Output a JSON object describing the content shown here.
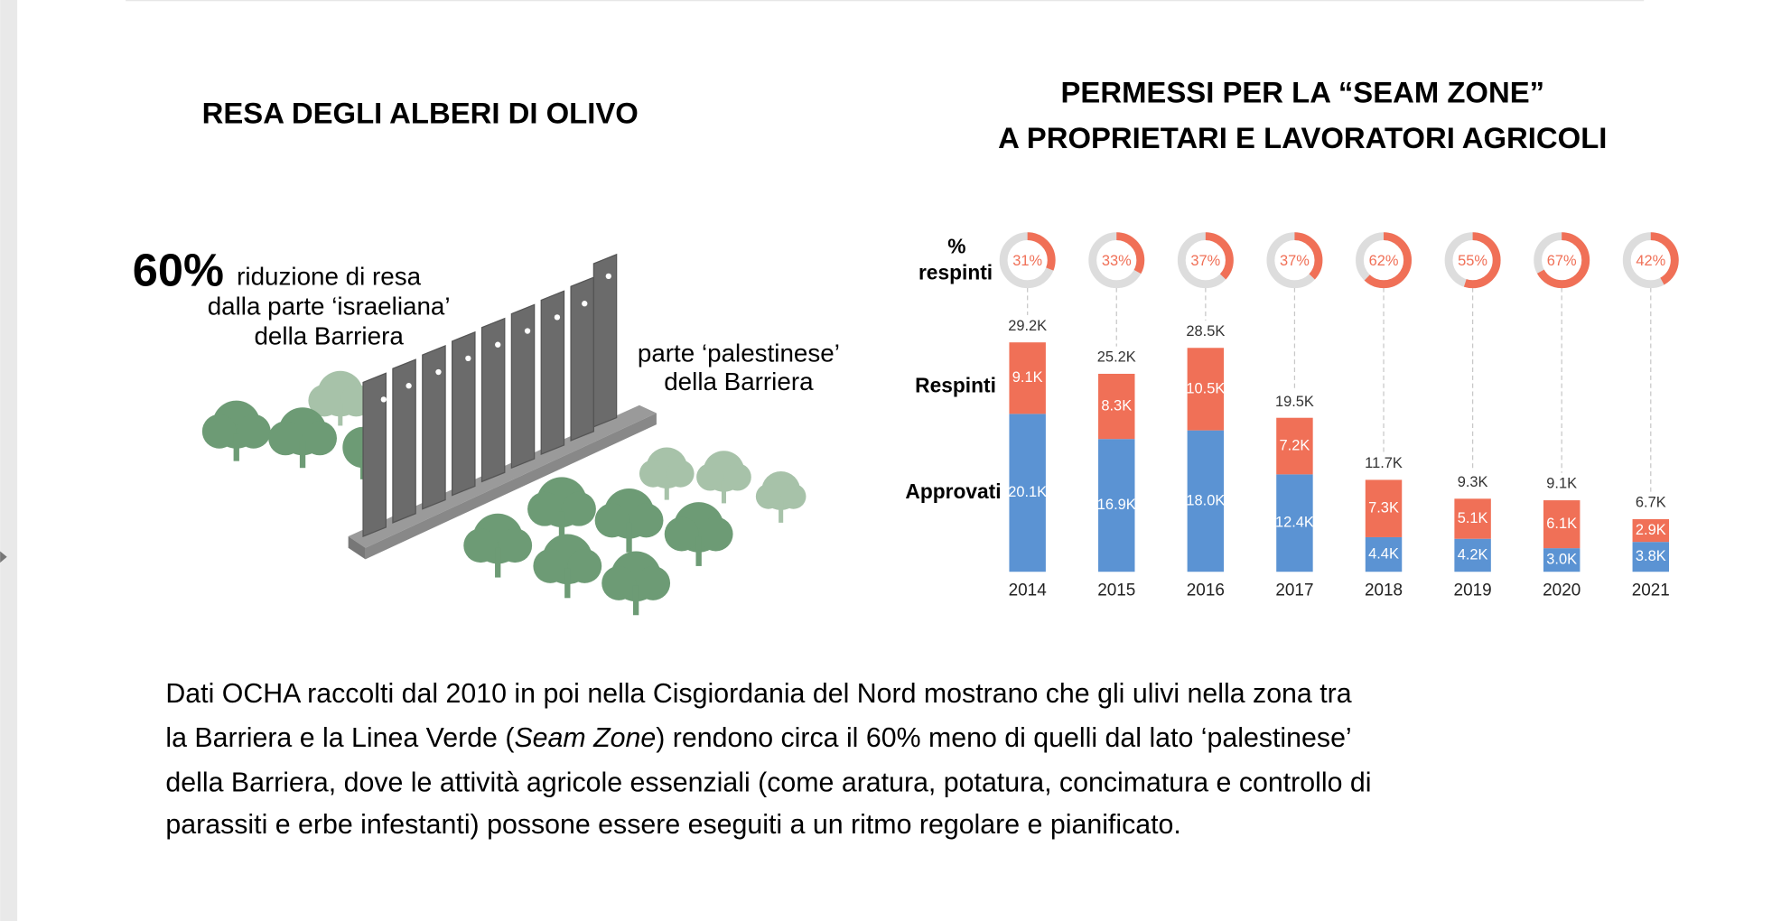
{
  "left": {
    "title": "RESA DEGLI ALBERI DI OLIVO",
    "highlight": "60%",
    "israeli_side": [
      "riduzione di resa",
      "dalla parte ‘israeliana’",
      "della Barriera"
    ],
    "palestinian_side": [
      "parte ‘palestinese’",
      "della Barriera"
    ]
  },
  "chart_data": {
    "type": "bar",
    "title": [
      "PERMESSI PER LA “SEAM ZONE”",
      "A PROPRIETARI E LAVORATORI AGRICOLI"
    ],
    "categories": [
      "2014",
      "2015",
      "2016",
      "2017",
      "2018",
      "2019",
      "2020",
      "2021"
    ],
    "series": [
      {
        "name": "Approvati",
        "color": "#5b93d3",
        "values": [
          20.1,
          16.9,
          18.0,
          12.4,
          4.4,
          4.2,
          3.0,
          3.8
        ],
        "value_labels": [
          "20.1K",
          "16.9K",
          "18.0K",
          "12.4K",
          "4.4K",
          "4.2K",
          "3.0K",
          "3.8K"
        ]
      },
      {
        "name": "Respinti",
        "color": "#f07057",
        "values": [
          9.1,
          8.3,
          10.5,
          7.2,
          7.3,
          5.1,
          6.1,
          2.9
        ],
        "value_labels": [
          "9.1K",
          "8.3K",
          "10.5K",
          "7.2K",
          "7.3K",
          "5.1K",
          "6.1K",
          "2.9K"
        ]
      }
    ],
    "totals": {
      "values": [
        29.2,
        25.2,
        28.5,
        19.5,
        11.7,
        9.3,
        9.1,
        6.7
      ],
      "value_labels": [
        "29.2K",
        "25.2K",
        "28.5K",
        "19.5K",
        "11.7K",
        "9.3K",
        "9.1K",
        "6.7K"
      ]
    },
    "percent_rejected": {
      "name": [
        "%",
        "respinti"
      ],
      "color": "#f07057",
      "track_color": "#dddddd",
      "values": [
        31,
        33,
        37,
        37,
        62,
        55,
        67,
        42
      ],
      "value_labels": [
        "31%",
        "33%",
        "37%",
        "37%",
        "62%",
        "55%",
        "67%",
        "42%"
      ]
    }
  },
  "paragraph": {
    "lines": [
      [
        "Dati OCHA raccolti dal 2010 in poi nella Cisgiordania del Nord mostrano che gli ulivi nella zona tra"
      ],
      [
        "la Barriera e la Linea Verde (",
        "Seam Zone",
        ") rendono circa il 60% meno di quelli dal lato ‘palestinese’"
      ],
      [
        "della Barriera, dove le attività agricole essenziali (come aratura, potatura, concimatura e controllo di"
      ],
      [
        "parassiti e erbe infestanti) possone essere eseguiti a un ritmo regolare e pianificato."
      ]
    ]
  }
}
